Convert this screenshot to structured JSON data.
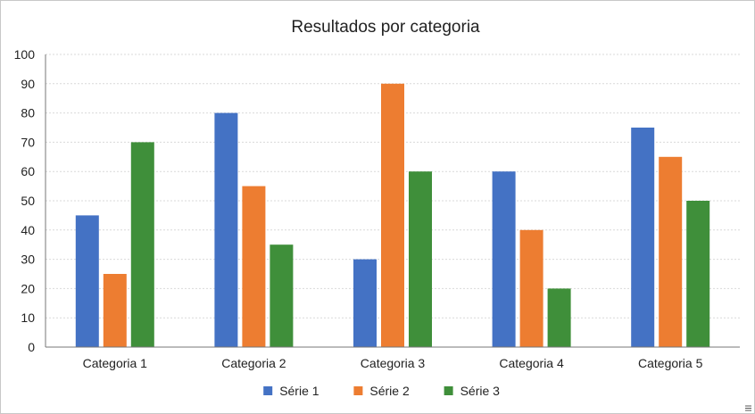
{
  "chart_data": {
    "type": "bar",
    "title": "Resultados por categoria",
    "xlabel": "",
    "ylabel": "",
    "categories": [
      "Categoria 1",
      "Categoria 2",
      "Categoria 3",
      "Categoria 4",
      "Categoria 5"
    ],
    "series": [
      {
        "name": "Série 1",
        "values": [
          45,
          80,
          30,
          60,
          75
        ],
        "color": "#4472c4"
      },
      {
        "name": "Série 2",
        "values": [
          25,
          55,
          90,
          40,
          65
        ],
        "color": "#ed7d31"
      },
      {
        "name": "Série 3",
        "values": [
          70,
          35,
          60,
          20,
          50
        ],
        "color": "#3f8f3a"
      }
    ],
    "ylim": [
      0,
      100
    ],
    "yticks": [
      "0",
      "10",
      "20",
      "30",
      "40",
      "50",
      "60",
      "70",
      "80",
      "90",
      "100"
    ],
    "grid": true,
    "legend_position": "bottom"
  },
  "window": {
    "resize_grip_icon": "resize-grip-icon"
  }
}
